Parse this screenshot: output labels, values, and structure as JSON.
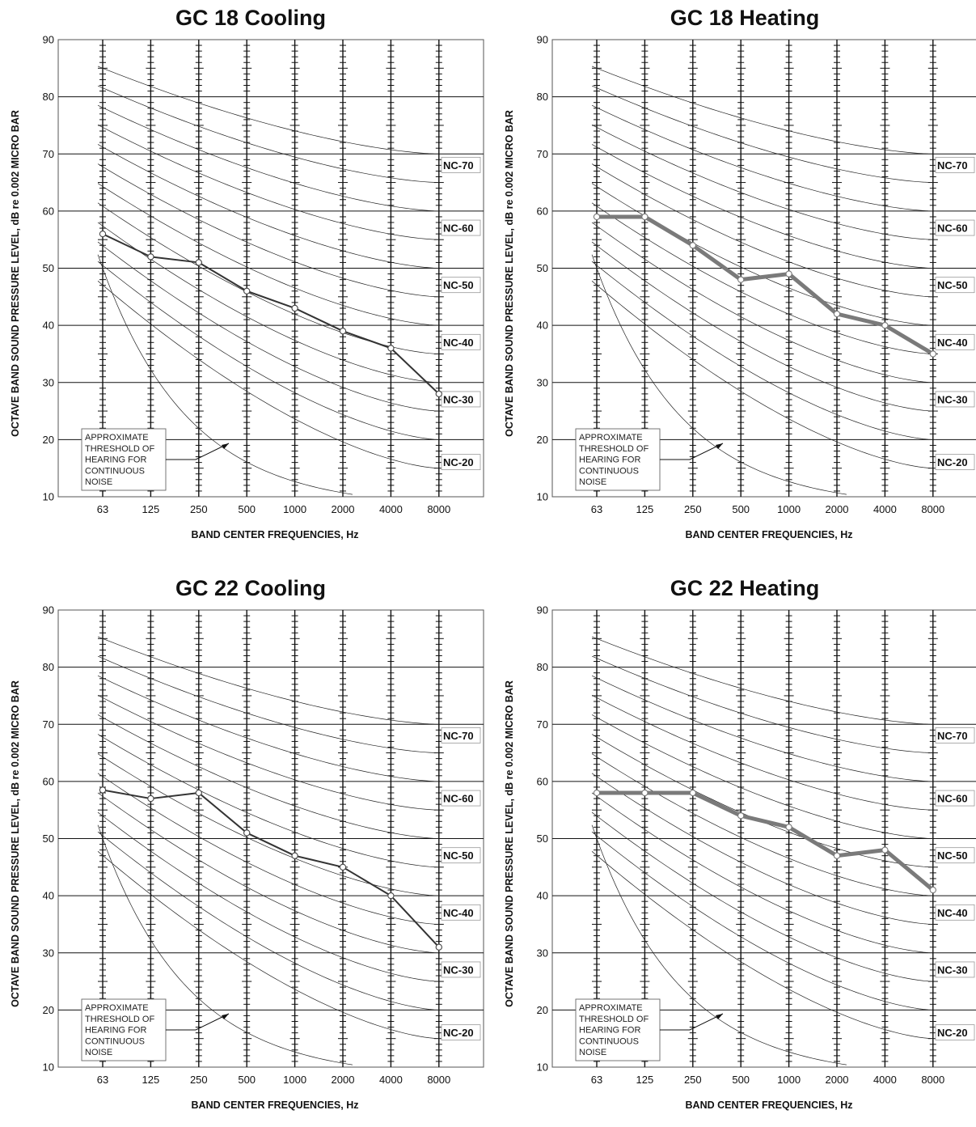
{
  "chart_data": [
    {
      "type": "line",
      "title": "GC 18 Cooling",
      "xlabel": "BAND CENTER FREQUENCIES, Hz",
      "ylabel": "OCTAVE BAND SOUND PRESSURE LEVEL, dB re 0.002 MICRO BAR",
      "categories": [
        "63",
        "125",
        "250",
        "500",
        "1000",
        "2000",
        "4000",
        "8000"
      ],
      "ylim": [
        10,
        90
      ],
      "yticks": [
        10,
        20,
        30,
        40,
        50,
        60,
        70,
        80,
        90
      ],
      "series": [
        {
          "values": [
            56,
            52,
            51,
            46,
            43,
            39,
            36,
            28
          ],
          "color": "#333333"
        }
      ],
      "nc_labels": [
        "NC-70",
        "NC-60",
        "NC-50",
        "NC-40",
        "NC-30",
        "NC-20"
      ],
      "annotation": "APPROXIMATE THRESHOLD OF HEARING FOR CONTINUOUS NOISE"
    },
    {
      "type": "line",
      "title": "GC 18 Heating",
      "xlabel": "BAND CENTER FREQUENCIES, Hz",
      "ylabel": "OCTAVE BAND SOUND PRESSURE LEVEL, dB re 0.002 MICRO BAR",
      "categories": [
        "63",
        "125",
        "250",
        "500",
        "1000",
        "2000",
        "4000",
        "8000"
      ],
      "ylim": [
        10,
        90
      ],
      "yticks": [
        10,
        20,
        30,
        40,
        50,
        60,
        70,
        80,
        90
      ],
      "series": [
        {
          "values": [
            59,
            59,
            54,
            48,
            49,
            42,
            40,
            35
          ],
          "color": "#7a7a7a"
        }
      ],
      "nc_labels": [
        "NC-70",
        "NC-60",
        "NC-50",
        "NC-40",
        "NC-30",
        "NC-20"
      ],
      "annotation": "APPROXIMATE THRESHOLD OF HEARING FOR CONTINUOUS NOISE"
    },
    {
      "type": "line",
      "title": "GC 22 Cooling",
      "xlabel": "BAND CENTER FREQUENCIES, Hz",
      "ylabel": "OCTAVE BAND SOUND PRESSURE LEVEL, dB re 0.002 MICRO BAR",
      "categories": [
        "63",
        "125",
        "250",
        "500",
        "1000",
        "2000",
        "4000",
        "8000"
      ],
      "ylim": [
        10,
        90
      ],
      "yticks": [
        10,
        20,
        30,
        40,
        50,
        60,
        70,
        80,
        90
      ],
      "series": [
        {
          "values": [
            58.5,
            57,
            58,
            51,
            47,
            45,
            40,
            31
          ],
          "color": "#333333"
        }
      ],
      "nc_labels": [
        "NC-70",
        "NC-60",
        "NC-50",
        "NC-40",
        "NC-30",
        "NC-20"
      ],
      "annotation": "APPROXIMATE THRESHOLD OF HEARING FOR CONTINUOUS NOISE"
    },
    {
      "type": "line",
      "title": "GC 22 Heating",
      "xlabel": "BAND CENTER FREQUENCIES, Hz",
      "ylabel": "OCTAVE BAND SOUND PRESSURE LEVEL, dB re 0.002 MICRO BAR",
      "categories": [
        "63",
        "125",
        "250",
        "500",
        "1000",
        "2000",
        "4000",
        "8000"
      ],
      "ylim": [
        10,
        90
      ],
      "yticks": [
        10,
        20,
        30,
        40,
        50,
        60,
        70,
        80,
        90
      ],
      "series": [
        {
          "values": [
            58,
            58,
            58,
            54,
            52,
            47,
            48,
            41
          ],
          "color": "#7a7a7a"
        }
      ],
      "nc_labels": [
        "NC-70",
        "NC-60",
        "NC-50",
        "NC-40",
        "NC-30",
        "NC-20"
      ],
      "annotation": "APPROXIMATE THRESHOLD OF HEARING FOR CONTINUOUS NOISE"
    }
  ]
}
